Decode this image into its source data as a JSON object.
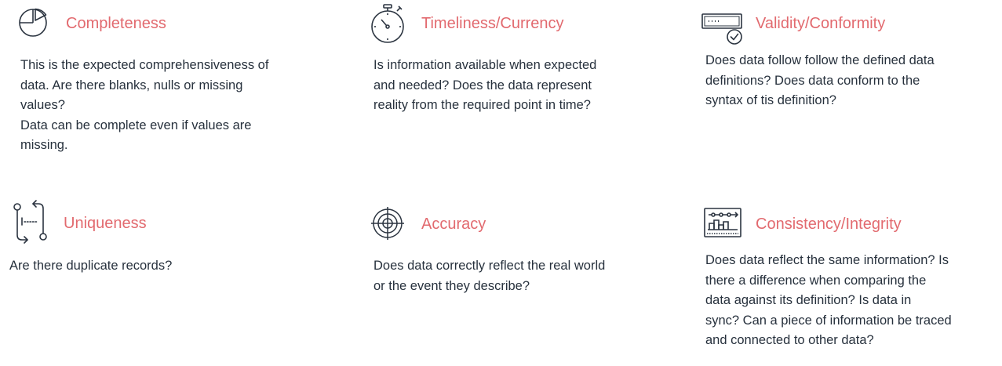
{
  "colors": {
    "title": "#e26a6f",
    "text": "#27313d",
    "icon": "#2b3440"
  },
  "cards": [
    {
      "icon": "pie-chart-icon",
      "title": "Completeness",
      "lines": [
        "This is the expected comprehensiveness of",
        "data. Are there blanks, nulls or missing",
        "values?",
        "Data can be complete even if values are",
        "missing."
      ]
    },
    {
      "icon": "stopwatch-icon",
      "title": "Timeliness/Currency",
      "lines": [
        "Is information available when expected",
        "and needed? Does the data represent",
        "reality from the required point in time?"
      ]
    },
    {
      "icon": "form-check-icon",
      "title": "Validity/Conformity",
      "lines": [
        "Does data follow follow the defined data",
        "definitions? Does data conform to the",
        "syntax of tis definition?"
      ]
    },
    {
      "icon": "swap-arrows-icon",
      "title": "Uniqueness",
      "lines": [
        "Are there duplicate records?"
      ]
    },
    {
      "icon": "target-icon",
      "title": "Accuracy",
      "lines": [
        "Does data correctly reflect the real world",
        "or the event they describe?"
      ]
    },
    {
      "icon": "dashboard-icon",
      "title": "Consistency/Integrity",
      "lines": [
        "Does data reflect the same information? Is",
        "there a difference when comparing the",
        "data against its definition?  Is data  in",
        "sync? Can a piece of information be traced",
        "and connected to other data?"
      ]
    }
  ]
}
